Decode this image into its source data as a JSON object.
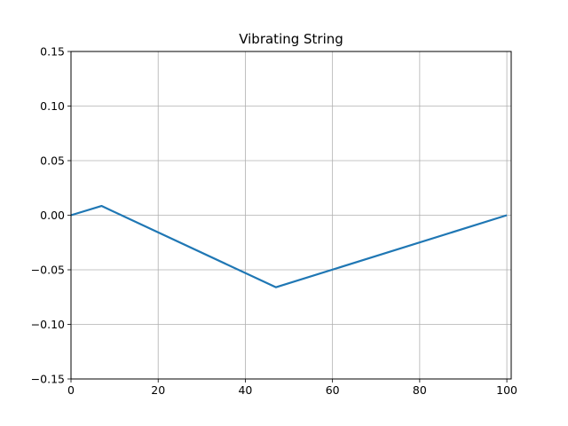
{
  "chart_data": {
    "type": "line",
    "title": "Vibrating String",
    "xlabel": "",
    "ylabel": "",
    "xlim": [
      0,
      101
    ],
    "ylim": [
      -0.15,
      0.15
    ],
    "xticks": [
      0,
      20,
      40,
      60,
      80,
      100
    ],
    "yticks": [
      -0.15,
      -0.1,
      -0.05,
      0.0,
      0.05,
      0.1,
      0.15
    ],
    "xtick_labels": [
      "0",
      "20",
      "40",
      "60",
      "80",
      "100"
    ],
    "ytick_labels": [
      "−0.15",
      "−0.10",
      "−0.05",
      "0.00",
      "0.05",
      "0.10",
      "0.15"
    ],
    "grid": true,
    "series": [
      {
        "color": "#1f77b4",
        "x": [
          0,
          7,
          47,
          100
        ],
        "y": [
          0.0,
          0.0085,
          -0.066,
          0.0
        ]
      }
    ]
  }
}
